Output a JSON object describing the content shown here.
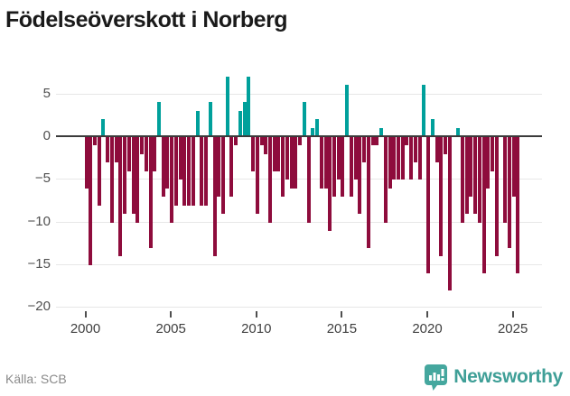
{
  "title": "Födelseöverskott i Norberg",
  "footer": {
    "source": "Källa: SCB",
    "brand": "Newsworthy"
  },
  "colors": {
    "positive": "#00a09b",
    "negative": "#8e0c3c",
    "axis_line": "#3b3b3b",
    "grid": "#e7e7e7",
    "brand_teal": "#3f9f97",
    "title_text": "#1a1a1a",
    "axis_text": "#4f4f4f",
    "source_text": "#8a8a8a"
  },
  "chart_data": {
    "type": "bar",
    "title": "Födelseöverskott i Norberg",
    "xlabel": "",
    "ylabel": "",
    "frequency": "quarterly",
    "start_period": "2000-Q1",
    "end_period": "2025-Q2",
    "values": [
      -6,
      -15,
      -1,
      -8,
      2,
      -3,
      -10,
      -3,
      -14,
      -9,
      -4,
      -9,
      -10,
      -2,
      -4,
      -13,
      -4,
      4,
      -7,
      -6,
      -10,
      -8,
      -5,
      -8,
      -8,
      -8,
      3,
      -8,
      -8,
      4,
      -14,
      -7,
      -9,
      7,
      -7,
      -1,
      3,
      4,
      7,
      -4,
      -9,
      -1,
      -2,
      -10,
      -4,
      -4,
      -7,
      -5,
      -6,
      -6,
      -1,
      4,
      -10,
      1,
      2,
      -6,
      -6,
      -11,
      -7,
      -5,
      -7,
      6,
      -7,
      -5,
      -9,
      -3,
      -13,
      -1,
      -1,
      1,
      -10,
      -6,
      -5,
      -5,
      -5,
      -1,
      -5,
      -3,
      -5,
      6,
      -16,
      2,
      -3,
      -14,
      -2,
      -18,
      0,
      1,
      -10,
      -9,
      -7,
      -9,
      -10,
      -16,
      -6,
      -4,
      -14,
      0,
      -10,
      -13,
      -7,
      -16
    ],
    "x_tick_years": [
      2000,
      2005,
      2010,
      2015,
      2020,
      2025
    ],
    "x_tick_labels": [
      "2000",
      "2005",
      "2010",
      "2015",
      "2020",
      "2025"
    ],
    "y_ticks": [
      5,
      0,
      -5,
      -10,
      -15,
      -20
    ],
    "y_tick_labels": [
      "5",
      "0",
      "−5",
      "−10",
      "−15",
      "−20"
    ],
    "ylim": [
      -20,
      7
    ],
    "grid": true,
    "legend": "none",
    "positive_color": "#00a09b",
    "negative_color": "#8e0c3c"
  }
}
